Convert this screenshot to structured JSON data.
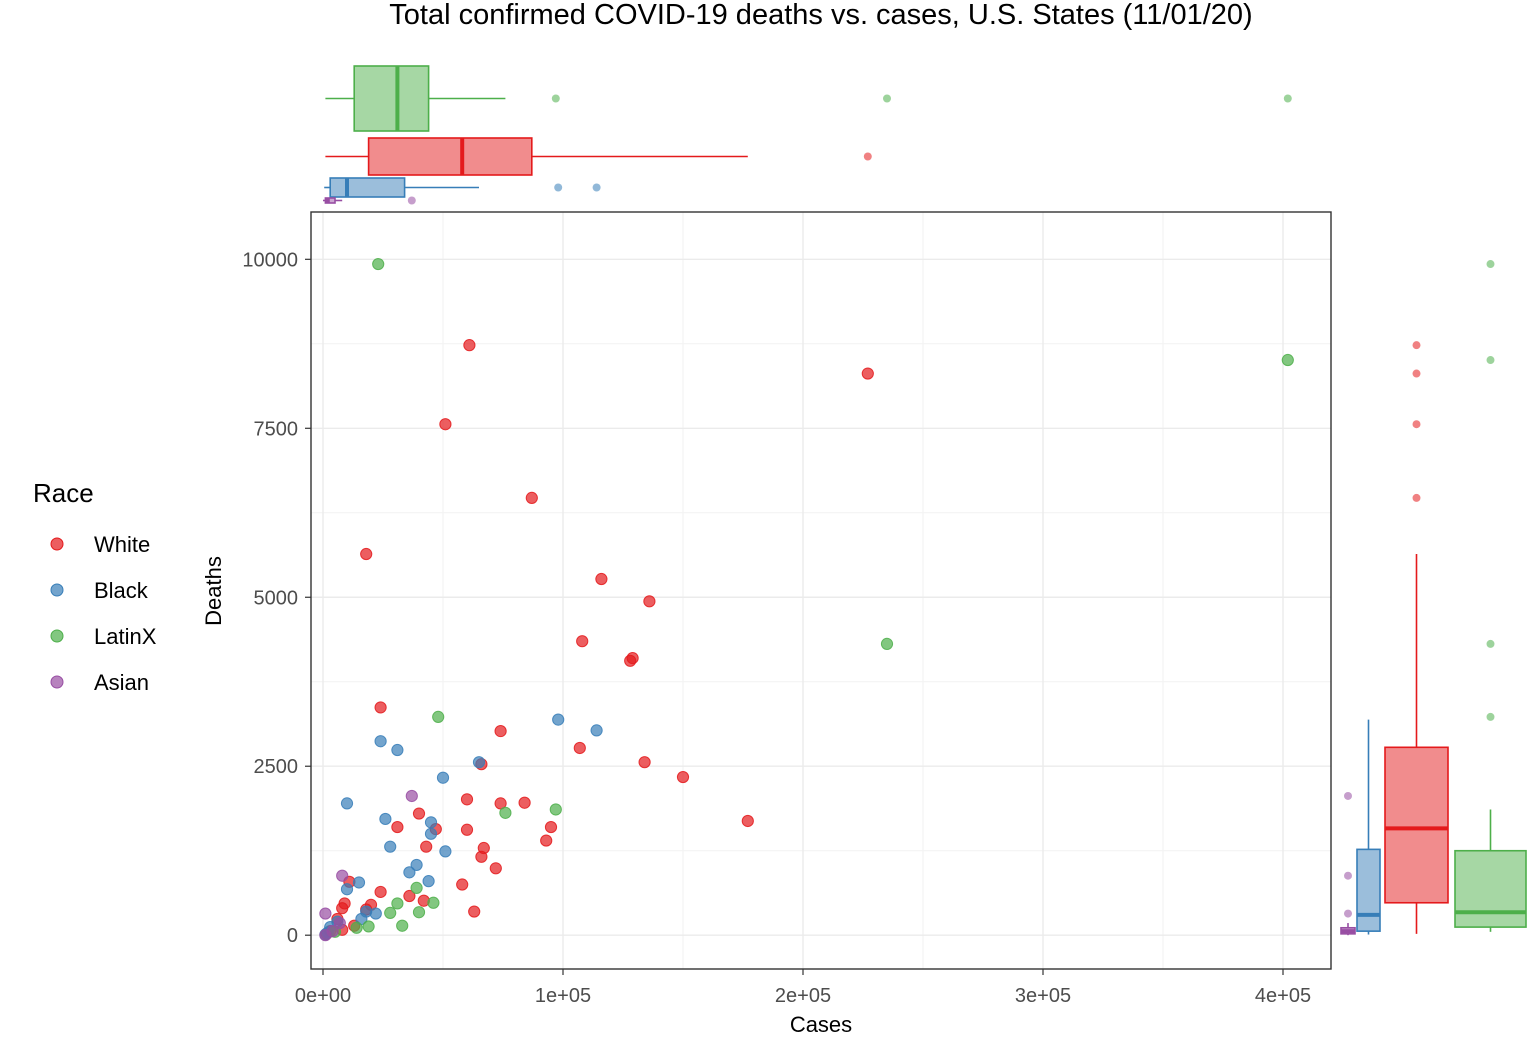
{
  "chart_data": {
    "type": "scatter",
    "title": "Total confirmed COVID-19 deaths vs. cases, U.S. States (11/01/20)",
    "xlabel": "Cases",
    "ylabel": "Deaths",
    "xlim": [
      -5000,
      420000
    ],
    "ylim": [
      -500,
      10700
    ],
    "x_ticks": [
      0,
      100000,
      200000,
      300000,
      400000
    ],
    "x_tick_labels": [
      "0e+00",
      "1e+05",
      "2e+05",
      "3e+05",
      "4e+05"
    ],
    "y_ticks": [
      0,
      2500,
      5000,
      7500,
      10000
    ],
    "y_tick_labels": [
      "0",
      "2500",
      "5000",
      "7500",
      "10000"
    ],
    "grid": true,
    "legend": {
      "title": "Race",
      "position": "left"
    },
    "marginals": "boxplots on top (cases) and right (deaths)",
    "series": [
      {
        "name": "White",
        "color": "#E41A1C",
        "points": [
          [
            61000,
            8730
          ],
          [
            51000,
            7560
          ],
          [
            227000,
            8310
          ],
          [
            87000,
            6470
          ],
          [
            18000,
            5640
          ],
          [
            116000,
            5270
          ],
          [
            136000,
            4940
          ],
          [
            108000,
            4350
          ],
          [
            128000,
            4060
          ],
          [
            129000,
            4100
          ],
          [
            24000,
            3370
          ],
          [
            74000,
            3020
          ],
          [
            107000,
            2770
          ],
          [
            134000,
            2560
          ],
          [
            150000,
            2340
          ],
          [
            66000,
            2530
          ],
          [
            60000,
            2010
          ],
          [
            74000,
            1950
          ],
          [
            84000,
            1960
          ],
          [
            177000,
            1690
          ],
          [
            95000,
            1600
          ],
          [
            93000,
            1400
          ],
          [
            40000,
            1800
          ],
          [
            31000,
            1600
          ],
          [
            47000,
            1570
          ],
          [
            60000,
            1560
          ],
          [
            67000,
            1290
          ],
          [
            43000,
            1310
          ],
          [
            66000,
            1160
          ],
          [
            72000,
            990
          ],
          [
            58000,
            750
          ],
          [
            36000,
            580
          ],
          [
            24000,
            640
          ],
          [
            63000,
            350
          ],
          [
            42000,
            510
          ],
          [
            11000,
            790
          ],
          [
            9000,
            470
          ],
          [
            20000,
            450
          ],
          [
            8000,
            400
          ],
          [
            18000,
            380
          ],
          [
            13000,
            140
          ],
          [
            6000,
            240
          ],
          [
            8000,
            80
          ],
          [
            3000,
            60
          ],
          [
            1500,
            20
          ]
        ]
      },
      {
        "name": "Black",
        "color": "#377EB8",
        "points": [
          [
            98000,
            3190
          ],
          [
            114000,
            3030
          ],
          [
            24000,
            2870
          ],
          [
            31000,
            2740
          ],
          [
            65000,
            2560
          ],
          [
            50000,
            2330
          ],
          [
            10000,
            1950
          ],
          [
            26000,
            1720
          ],
          [
            45000,
            1670
          ],
          [
            45000,
            1500
          ],
          [
            28000,
            1310
          ],
          [
            51000,
            1240
          ],
          [
            39000,
            1040
          ],
          [
            36000,
            930
          ],
          [
            44000,
            800
          ],
          [
            15000,
            780
          ],
          [
            10000,
            680
          ],
          [
            18000,
            350
          ],
          [
            22000,
            320
          ],
          [
            16000,
            240
          ],
          [
            6000,
            200
          ],
          [
            3000,
            120
          ],
          [
            2000,
            40
          ],
          [
            1000,
            10
          ]
        ]
      },
      {
        "name": "LatinX",
        "color": "#4DAF4A",
        "points": [
          [
            23000,
            9930
          ],
          [
            402000,
            8510
          ],
          [
            235000,
            4310
          ],
          [
            48000,
            3230
          ],
          [
            97000,
            1860
          ],
          [
            76000,
            1810
          ],
          [
            39000,
            700
          ],
          [
            46000,
            480
          ],
          [
            31000,
            470
          ],
          [
            40000,
            340
          ],
          [
            28000,
            330
          ],
          [
            33000,
            140
          ],
          [
            19000,
            130
          ],
          [
            14000,
            110
          ],
          [
            5000,
            50
          ]
        ]
      },
      {
        "name": "Asian",
        "color": "#984EA3",
        "points": [
          [
            37000,
            2060
          ],
          [
            8000,
            880
          ],
          [
            1000,
            320
          ],
          [
            7000,
            180
          ],
          [
            4000,
            60
          ],
          [
            1000,
            0
          ]
        ]
      }
    ],
    "boxplots_cases": [
      {
        "series": "LatinX",
        "q1": 13000,
        "median": 31000,
        "q3": 44000,
        "whisker_low": 1000,
        "whisker_high": 76000,
        "outliers": [
          97000,
          235000,
          402000
        ]
      },
      {
        "series": "White",
        "q1": 19000,
        "median": 58000,
        "q3": 87000,
        "whisker_low": 1000,
        "whisker_high": 177000,
        "outliers": [
          227000
        ]
      },
      {
        "series": "Black",
        "q1": 3000,
        "median": 10000,
        "q3": 34000,
        "whisker_low": 500,
        "whisker_high": 65000,
        "outliers": [
          98000,
          114000
        ]
      },
      {
        "series": "Asian",
        "q1": 1000,
        "median": 2000,
        "q3": 5000,
        "whisker_low": 0,
        "whisker_high": 8000,
        "outliers": [
          37000
        ]
      }
    ],
    "boxplots_deaths": [
      {
        "series": "Asian",
        "q1": 20,
        "median": 60,
        "q3": 110,
        "whisker_low": 0,
        "whisker_high": 180,
        "outliers": [
          320,
          880,
          2060
        ]
      },
      {
        "series": "Black",
        "q1": 60,
        "median": 300,
        "q3": 1270,
        "whisker_low": 10,
        "whisker_high": 3190,
        "outliers": []
      },
      {
        "series": "White",
        "q1": 480,
        "median": 1580,
        "q3": 2780,
        "whisker_low": 20,
        "whisker_high": 5640,
        "outliers": [
          6470,
          7560,
          8310,
          8730
        ]
      },
      {
        "series": "LatinX",
        "q1": 120,
        "median": 340,
        "q3": 1250,
        "whisker_low": 50,
        "whisker_high": 1860,
        "outliers": [
          3230,
          4310,
          8510,
          9930
        ]
      }
    ]
  }
}
